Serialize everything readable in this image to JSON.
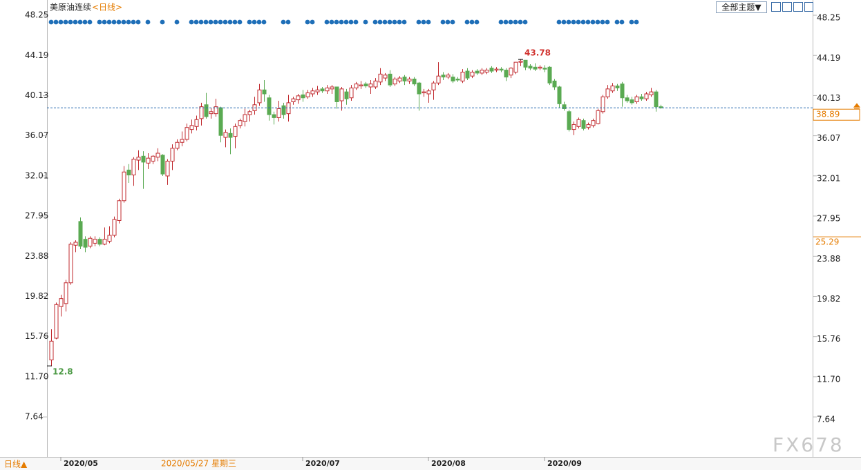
{
  "chart_data": {
    "type": "candlestick",
    "title": "美原油连续",
    "period": "<日线>",
    "ylim": [
      3.6,
      49.65
    ],
    "yticks": [
      48.25,
      44.19,
      40.13,
      36.07,
      32.01,
      27.95,
      23.88,
      19.82,
      15.76,
      {
        "value": 11.7,
        "label": "11.70"
      },
      7.64
    ],
    "up_color": "#c0282d",
    "down_color": "#5aaa52",
    "last_line_color": "#2a6db0",
    "marker_value": 25.29,
    "crosshair_date": "2020/05/27 星期三",
    "categories": [
      null,
      null,
      "2020/05",
      null,
      null,
      null,
      null,
      null,
      null,
      null,
      null,
      null,
      null,
      null,
      null,
      null,
      null,
      null,
      null,
      null,
      null,
      null,
      null,
      null,
      null,
      null,
      null,
      null,
      null,
      null,
      null,
      null,
      null,
      null,
      null,
      null,
      null,
      null,
      null,
      null,
      null,
      null,
      null,
      null,
      null,
      null,
      null,
      null,
      null,
      null,
      null,
      null,
      "2020/07",
      null,
      null,
      null,
      null,
      null,
      null,
      null,
      null,
      null,
      null,
      null,
      null,
      null,
      null,
      null,
      null,
      null,
      null,
      null,
      null,
      null,
      null,
      null,
      null,
      null,
      "2020/08",
      null,
      null,
      null,
      null,
      null,
      null,
      null,
      null,
      null,
      null,
      null,
      null,
      null,
      null,
      null,
      null,
      null,
      null,
      null,
      null,
      null,
      null,
      null,
      "2020/09",
      null,
      null,
      null,
      null,
      null,
      null,
      null,
      null,
      null,
      null,
      null,
      null,
      null,
      null,
      null,
      null,
      null,
      null,
      null,
      null,
      null,
      null,
      null,
      null
    ],
    "ohlc": [
      [
        13.4,
        16.5,
        12.8,
        15.3
      ],
      [
        15.6,
        19.2,
        15.5,
        19.0
      ],
      [
        18.8,
        20.0,
        17.8,
        19.6
      ],
      [
        19.1,
        21.5,
        18.3,
        21.2
      ],
      [
        21.2,
        25.3,
        21.0,
        25.1
      ],
      [
        25.0,
        25.5,
        24.3,
        25.3
      ],
      [
        27.4,
        27.8,
        24.6,
        24.9
      ],
      [
        25.6,
        25.9,
        24.3,
        24.8
      ],
      [
        24.9,
        25.9,
        24.7,
        25.7
      ],
      [
        25.2,
        25.9,
        24.9,
        25.6
      ],
      [
        25.6,
        25.8,
        24.9,
        25.1
      ],
      [
        25.1,
        26.8,
        25.0,
        25.6
      ],
      [
        25.4,
        26.9,
        25.2,
        26.0
      ],
      [
        26.0,
        27.9,
        25.8,
        27.6
      ],
      [
        27.5,
        29.7,
        27.2,
        29.5
      ],
      [
        29.5,
        33.0,
        29.3,
        32.4
      ],
      [
        32.6,
        33.2,
        31.3,
        32.1
      ],
      [
        32.1,
        33.9,
        31.0,
        33.7
      ],
      [
        33.6,
        34.6,
        32.6,
        33.9
      ],
      [
        34.0,
        34.5,
        30.7,
        33.4
      ],
      [
        33.3,
        34.3,
        32.7,
        33.8
      ],
      [
        33.5,
        34.1,
        33.2,
        34.0
      ],
      [
        33.9,
        34.8,
        33.5,
        34.3
      ],
      [
        34.1,
        34.2,
        32.0,
        32.2
      ],
      [
        32.0,
        33.7,
        31.1,
        33.5
      ],
      [
        33.5,
        35.2,
        32.6,
        34.8
      ],
      [
        34.8,
        35.7,
        34.6,
        35.4
      ],
      [
        35.4,
        36.5,
        35.0,
        35.7
      ],
      [
        35.7,
        37.3,
        35.5,
        36.9
      ],
      [
        36.7,
        37.7,
        36.3,
        37.1
      ],
      [
        37.0,
        38.1,
        36.6,
        37.7
      ],
      [
        37.8,
        39.4,
        37.1,
        39.0
      ],
      [
        39.2,
        40.4,
        37.8,
        38.0
      ],
      [
        38.3,
        38.9,
        37.8,
        38.5
      ],
      [
        38.3,
        39.8,
        38.0,
        39.0
      ],
      [
        38.9,
        39.0,
        35.4,
        36.1
      ],
      [
        35.9,
        36.7,
        34.9,
        36.4
      ],
      [
        36.3,
        36.8,
        34.2,
        35.9
      ],
      [
        36.0,
        37.3,
        34.8,
        37.0
      ],
      [
        37.1,
        37.8,
        36.8,
        37.6
      ],
      [
        37.5,
        38.8,
        37.0,
        38.2
      ],
      [
        38.2,
        38.7,
        37.5,
        38.5
      ],
      [
        38.6,
        40.0,
        38.2,
        39.2
      ],
      [
        39.4,
        41.3,
        39.1,
        40.7
      ],
      [
        40.7,
        41.7,
        39.5,
        40.3
      ],
      [
        39.9,
        40.2,
        37.6,
        38.2
      ],
      [
        38.2,
        38.5,
        37.2,
        37.9
      ],
      [
        37.9,
        39.6,
        37.5,
        38.8
      ],
      [
        39.1,
        39.4,
        37.8,
        38.2
      ],
      [
        38.3,
        40.2,
        37.5,
        39.4
      ],
      [
        39.5,
        40.0,
        39.2,
        39.8
      ],
      [
        39.7,
        40.3,
        39.3,
        40.1
      ],
      [
        40.2,
        40.7,
        39.5,
        39.9
      ],
      [
        40.0,
        40.7,
        39.8,
        40.4
      ],
      [
        40.3,
        40.9,
        40.0,
        40.6
      ],
      [
        40.5,
        41.1,
        40.2,
        40.7
      ],
      [
        40.8,
        41.0,
        40.4,
        40.6
      ],
      [
        40.6,
        41.2,
        40.3,
        40.9
      ],
      [
        40.8,
        41.2,
        40.3,
        41.0
      ],
      [
        41.0,
        41.0,
        38.8,
        39.5
      ],
      [
        39.6,
        41.0,
        38.6,
        40.8
      ],
      [
        40.5,
        40.8,
        39.2,
        39.8
      ],
      [
        39.9,
        41.2,
        39.6,
        40.9
      ],
      [
        40.9,
        41.5,
        40.7,
        41.3
      ],
      [
        41.1,
        41.6,
        40.8,
        41.2
      ],
      [
        41.3,
        41.5,
        40.9,
        41.1
      ],
      [
        41.0,
        41.7,
        40.3,
        41.3
      ],
      [
        41.0,
        41.9,
        40.8,
        41.6
      ],
      [
        41.5,
        42.9,
        41.2,
        42.3
      ],
      [
        41.9,
        42.4,
        41.6,
        42.2
      ],
      [
        42.3,
        42.7,
        41.0,
        41.2
      ],
      [
        41.3,
        42.0,
        41.1,
        41.8
      ],
      [
        41.6,
        42.1,
        41.4,
        41.9
      ],
      [
        42.0,
        42.2,
        41.2,
        41.6
      ],
      [
        41.6,
        42.0,
        41.3,
        41.8
      ],
      [
        41.8,
        42.0,
        41.1,
        41.3
      ],
      [
        41.4,
        41.5,
        38.6,
        40.3
      ],
      [
        40.4,
        40.8,
        40.0,
        40.5
      ],
      [
        40.3,
        40.8,
        39.4,
        40.6
      ],
      [
        40.7,
        41.6,
        39.7,
        41.4
      ],
      [
        41.4,
        43.5,
        41.2,
        42.1
      ],
      [
        42.2,
        42.5,
        41.7,
        42.0
      ],
      [
        42.0,
        42.4,
        41.8,
        42.2
      ],
      [
        42.0,
        42.3,
        41.4,
        41.6
      ],
      [
        41.8,
        42.0,
        41.5,
        41.7
      ],
      [
        41.6,
        42.8,
        41.4,
        42.5
      ],
      [
        42.6,
        42.9,
        41.7,
        41.9
      ],
      [
        42.1,
        42.7,
        41.9,
        42.5
      ],
      [
        42.6,
        42.8,
        42.2,
        42.4
      ],
      [
        42.4,
        42.9,
        42.2,
        42.7
      ],
      [
        42.5,
        42.9,
        42.3,
        42.7
      ],
      [
        42.9,
        43.1,
        42.4,
        42.6
      ],
      [
        42.7,
        43.0,
        42.5,
        42.8
      ],
      [
        42.8,
        43.0,
        42.5,
        42.7
      ],
      [
        42.7,
        42.9,
        41.6,
        42.0
      ],
      [
        42.2,
        43.0,
        41.9,
        42.9
      ],
      [
        42.5,
        43.5,
        42.3,
        43.5
      ],
      [
        43.5,
        43.78,
        43.1,
        43.6
      ],
      [
        43.7,
        43.7,
        42.7,
        43.0
      ],
      [
        43.1,
        43.3,
        42.7,
        42.9
      ],
      [
        43.0,
        43.4,
        42.6,
        42.8
      ],
      [
        42.9,
        43.2,
        42.7,
        43.0
      ],
      [
        42.9,
        43.2,
        42.5,
        42.8
      ],
      [
        43.0,
        43.1,
        41.2,
        41.4
      ],
      [
        41.6,
        41.8,
        40.7,
        41.0
      ],
      [
        41.0,
        41.1,
        38.9,
        39.3
      ],
      [
        39.2,
        39.5,
        38.6,
        38.8
      ],
      [
        38.5,
        38.7,
        36.5,
        36.7
      ],
      [
        36.7,
        37.5,
        36.13,
        37.2
      ],
      [
        37.0,
        37.9,
        36.8,
        37.7
      ],
      [
        37.6,
        37.8,
        36.6,
        36.8
      ],
      [
        36.9,
        37.4,
        36.7,
        37.2
      ],
      [
        37.1,
        37.8,
        36.9,
        37.6
      ],
      [
        37.3,
        38.8,
        37.2,
        38.6
      ],
      [
        38.5,
        40.2,
        38.3,
        40.0
      ],
      [
        40.0,
        41.2,
        39.8,
        40.8
      ],
      [
        40.6,
        41.4,
        40.4,
        41.1
      ],
      [
        41.1,
        41.3,
        40.6,
        40.9
      ],
      [
        41.3,
        41.5,
        39.0,
        39.9
      ],
      [
        39.9,
        40.2,
        39.4,
        39.6
      ],
      [
        39.7,
        40.0,
        39.2,
        39.4
      ],
      [
        39.5,
        40.2,
        39.3,
        40.0
      ],
      [
        40.0,
        40.3,
        39.6,
        39.8
      ],
      [
        39.8,
        40.5,
        39.6,
        40.3
      ],
      [
        40.2,
        40.9,
        40.0,
        40.5
      ],
      [
        40.5,
        40.7,
        38.5,
        39.0
      ],
      [
        39.0,
        39.2,
        38.8,
        38.89
      ]
    ]
  },
  "ui": {
    "theme_button": "全部主题▼",
    "period_button": "日线▲",
    "watermark": "FX678"
  }
}
